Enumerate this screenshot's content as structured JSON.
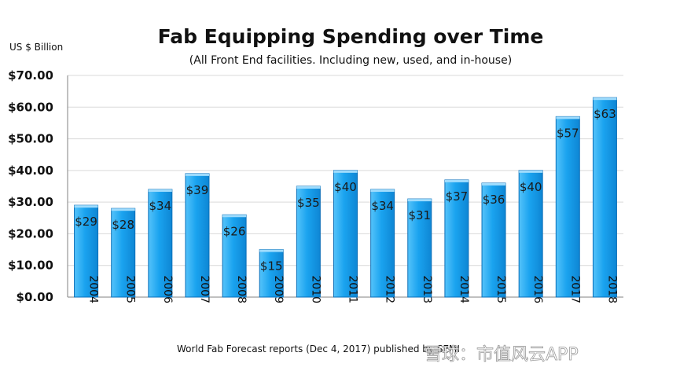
{
  "chart_data": {
    "type": "bar",
    "title": "Fab Equipping Spending over Time",
    "subtitle": "(All Front End facilities. Including new, used, and in-house)",
    "ylabel": "US $ Billion",
    "xlabel": "",
    "ylim": [
      0,
      70
    ],
    "yticks": [
      "$0.00",
      "$10.00",
      "$20.00",
      "$30.00",
      "$40.00",
      "$50.00",
      "$60.00",
      "$70.00"
    ],
    "ytick_values": [
      0,
      10,
      20,
      30,
      40,
      50,
      60,
      70
    ],
    "categories": [
      "2004",
      "2005",
      "2006",
      "2007",
      "2008",
      "2009",
      "2010",
      "2011",
      "2012",
      "2013",
      "2014",
      "2015",
      "2016",
      "2017",
      "2018"
    ],
    "values": [
      29,
      28,
      34,
      39,
      26,
      15,
      35,
      40,
      34,
      31,
      37,
      36,
      40,
      57,
      63
    ],
    "value_labels": [
      "$29",
      "$28",
      "$34",
      "$39",
      "$26",
      "$15",
      "$35",
      "$40",
      "$34",
      "$31",
      "$37",
      "$36",
      "$40",
      "$57",
      "$63"
    ],
    "grid": true,
    "legend": "none",
    "bar_color": "#1aa3ef",
    "bar_edge_color": "#0b6fb8",
    "source": "World Fab Forecast reports (Dec 4, 2017) published by SEMI",
    "watermark": "雪球：市值风云APP"
  }
}
